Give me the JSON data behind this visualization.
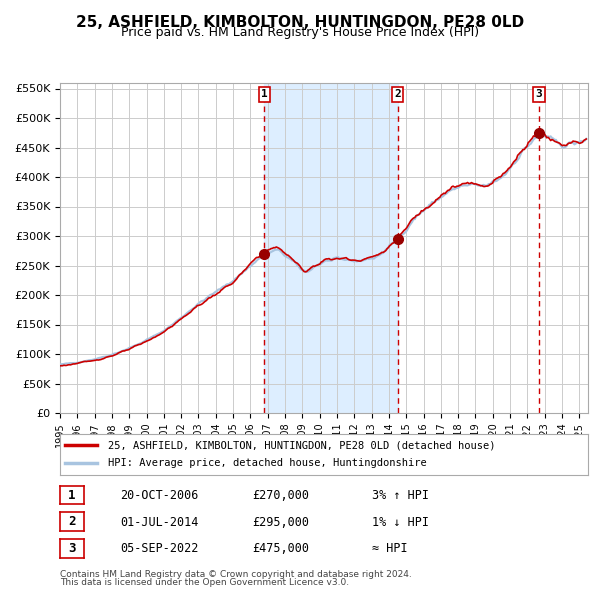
{
  "title": "25, ASHFIELD, KIMBOLTON, HUNTINGDON, PE28 0LD",
  "subtitle": "Price paid vs. HM Land Registry's House Price Index (HPI)",
  "legend_line1": "25, ASHFIELD, KIMBOLTON, HUNTINGDON, PE28 0LD (detached house)",
  "legend_line2": "HPI: Average price, detached house, Huntingdonshire",
  "footer1": "Contains HM Land Registry data © Crown copyright and database right 2024.",
  "footer2": "This data is licensed under the Open Government Licence v3.0.",
  "sale_events": [
    {
      "num": 1,
      "date": "20-OCT-2006",
      "price": 270000,
      "relation": "3% ↑ HPI",
      "date_val": 2006.8
    },
    {
      "num": 2,
      "date": "01-JUL-2014",
      "price": 295000,
      "relation": "1% ↓ HPI",
      "date_val": 2014.5
    },
    {
      "num": 3,
      "date": "05-SEP-2022",
      "price": 475000,
      "relation": "≈ HPI",
      "date_val": 2022.67
    }
  ],
  "hpi_color": "#a8c4e0",
  "price_color": "#cc0000",
  "marker_color": "#990000",
  "dashed_color": "#cc0000",
  "bg_color": "#ddeeff",
  "plot_bg": "#ffffff",
  "grid_color": "#cccccc",
  "highlight_bg": "#ddeeff",
  "ylim": [
    0,
    560000
  ],
  "yticks": [
    0,
    50000,
    100000,
    150000,
    200000,
    250000,
    300000,
    350000,
    400000,
    450000,
    500000,
    550000
  ],
  "ytick_labels": [
    "£0",
    "£50K",
    "£100K",
    "£150K",
    "£200K",
    "£250K",
    "£300K",
    "£350K",
    "£400K",
    "£450K",
    "£500K",
    "£550K"
  ],
  "xmin": 1995.0,
  "xmax": 2025.5
}
